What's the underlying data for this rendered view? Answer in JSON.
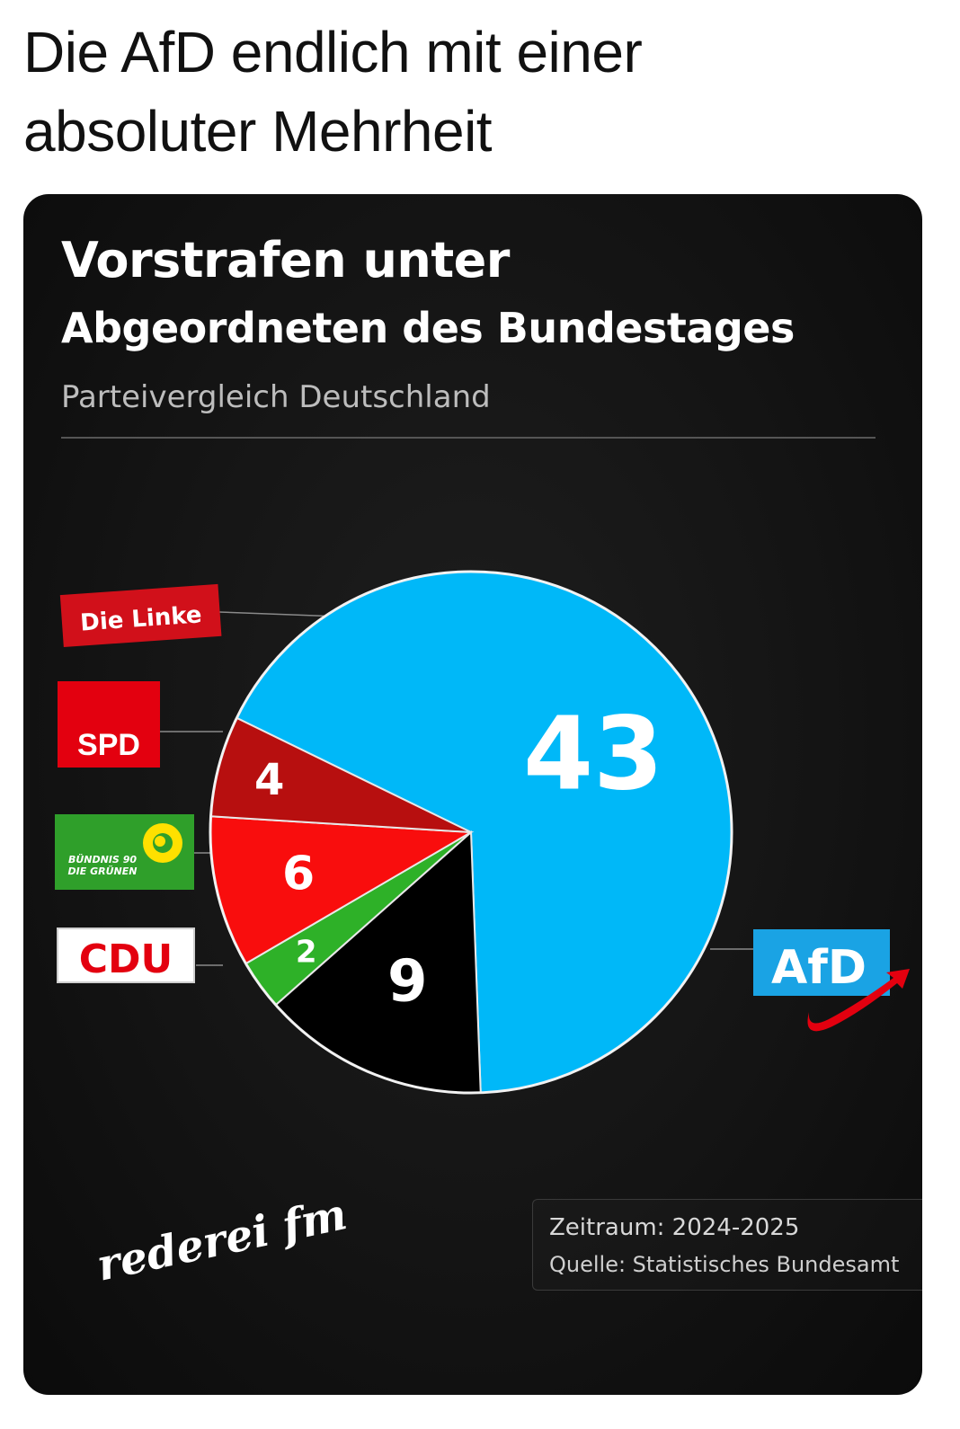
{
  "post": {
    "text_line1": "Die AfD endlich mit einer",
    "text_line2": "absoluter Mehrheit"
  },
  "card": {
    "title_line1": "Vorstrafen unter",
    "title_line2": "Abgeordneten des Bundestages",
    "subtitle": "Parteivergleich Deutschland",
    "source_period": "Zeitraum: 2024-2025",
    "source_origin": "Quelle: Statistisches Bundesamt",
    "brand_logo_text": "rederei fm"
  },
  "colors": {
    "afd": "#00B8F8",
    "linke": "#B70F0F",
    "spd": "#F90D0D",
    "gruene": "#2EB128",
    "cdu": "#000000",
    "card_bg": "#141414"
  },
  "party_logos": {
    "linke": "Die Linke",
    "spd": "SPD",
    "gruene_line1": "BÜNDNIS 90",
    "gruene_line2": "DIE GRÜNEN",
    "cdu": "CDU",
    "afd": "AfD"
  },
  "chart_data": {
    "type": "pie",
    "title": "Vorstrafen unter Abgeordneten des Bundestages",
    "subtitle": "Parteivergleich Deutschland",
    "categories": [
      "AfD",
      "CDU",
      "Bündnis 90/Die Grünen",
      "SPD",
      "Die Linke"
    ],
    "values": [
      43,
      9,
      2,
      6,
      4
    ],
    "labels": [
      "43",
      "9",
      "2",
      "6",
      "4"
    ],
    "colors": [
      "#00B8F8",
      "#000000",
      "#2EB128",
      "#F90D0D",
      "#B70F0F"
    ],
    "legend": "logos beside slices",
    "grid": false
  }
}
